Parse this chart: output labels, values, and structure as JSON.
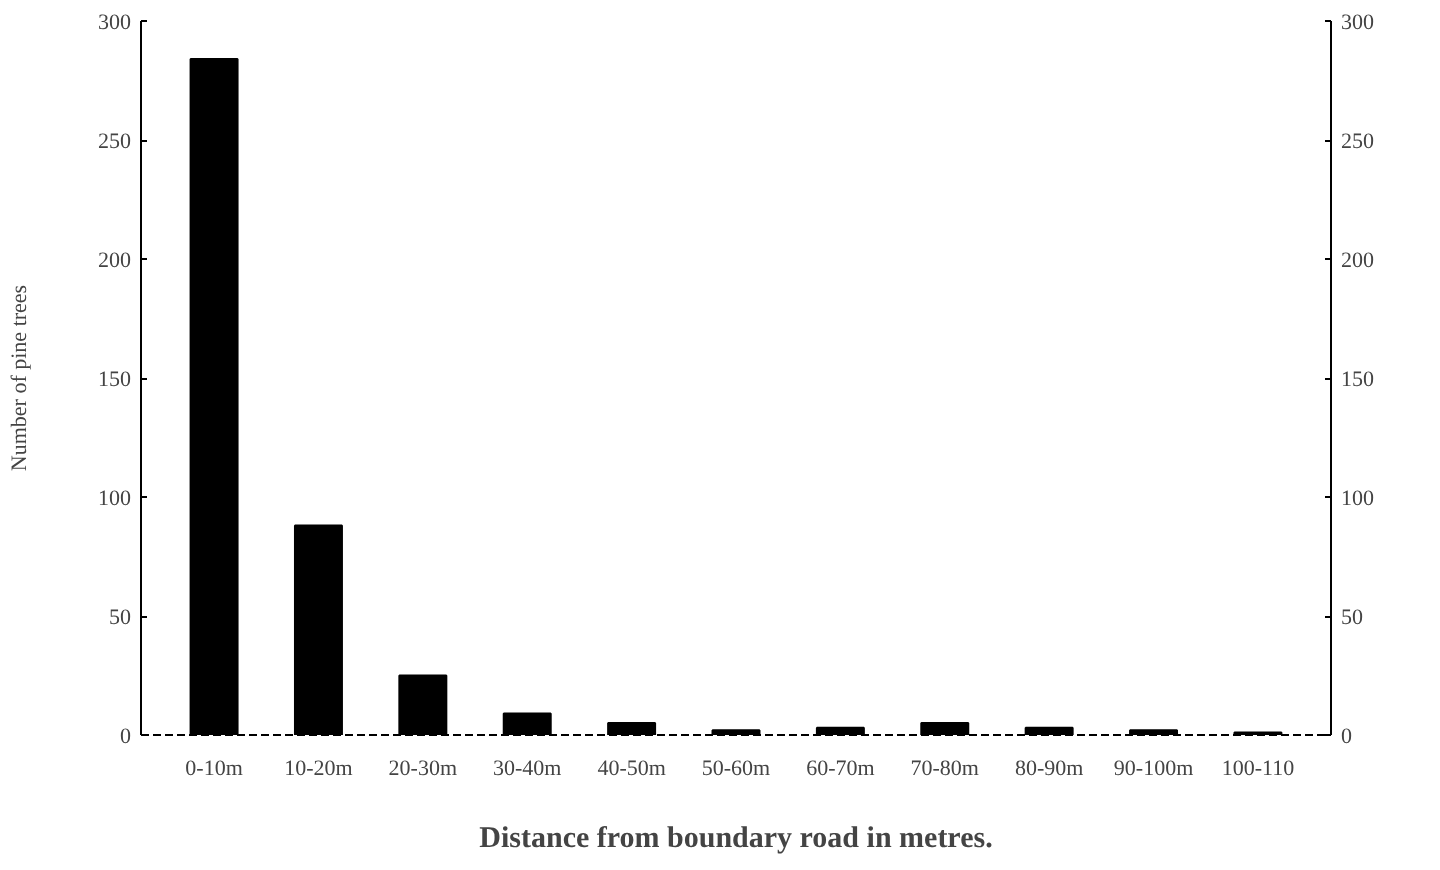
{
  "chart_data": {
    "type": "bar",
    "categories": [
      "0-10m",
      "10-20m",
      "20-30m",
      "30-40m",
      "40-50m",
      "50-60m",
      "60-70m",
      "70-80m",
      "80-90m",
      "90-100m",
      "100-110"
    ],
    "values": [
      284,
      88,
      25,
      9,
      5,
      2,
      3,
      5,
      3,
      2,
      1
    ],
    "color": "#000000",
    "xlabel": "Distance from boundary road in metres.",
    "ylabel": "Number of pine trees",
    "ylim": [
      0,
      300
    ],
    "yticks": [
      0,
      50,
      100,
      150,
      200,
      250,
      300
    ],
    "y2lim": [
      0,
      300
    ],
    "y2ticks": [
      0,
      50,
      100,
      150,
      200,
      250,
      300
    ],
    "grid": false
  }
}
